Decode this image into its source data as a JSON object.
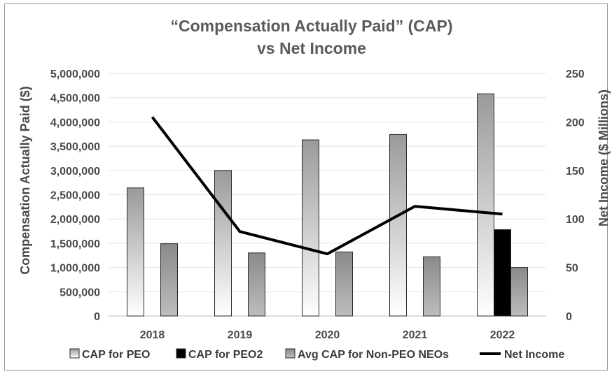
{
  "chart_data": {
    "type": "bar",
    "title": [
      "“Compensation Actually Paid” (CAP)",
      "vs Net Income"
    ],
    "categories": [
      "2018",
      "2019",
      "2020",
      "2021",
      "2022"
    ],
    "ylabel": "Compensation Actually Paid ($)",
    "y2label": "Net Income ($ Millions)",
    "ylim": [
      0,
      5000000
    ],
    "y2lim": [
      0,
      250
    ],
    "yticks": [
      "0",
      "500,000",
      "1,000,000",
      "1,500,000",
      "2,000,000",
      "2,500,000",
      "3,000,000",
      "3,500,000",
      "4,000,000",
      "4,500,000",
      "5,000,000"
    ],
    "y2ticks": [
      "0",
      "50",
      "100",
      "150",
      "200",
      "250"
    ],
    "grid": true,
    "legend_position": "bottom",
    "series": [
      {
        "name": "CAP for PEO",
        "kind": "bar",
        "axis": "left",
        "style": "gradient-light",
        "values": [
          2640000,
          3000000,
          3630000,
          3740000,
          4580000
        ]
      },
      {
        "name": "CAP for PEO2",
        "kind": "bar",
        "axis": "left",
        "style": "black",
        "values": [
          null,
          null,
          null,
          null,
          1780000
        ]
      },
      {
        "name": "Avg CAP for Non-PEO NEOs",
        "kind": "bar",
        "axis": "left",
        "style": "gradient-dark",
        "values": [
          1490000,
          1300000,
          1320000,
          1220000,
          1000000
        ]
      },
      {
        "name": "Net Income",
        "kind": "line",
        "axis": "right",
        "color": "#000000",
        "values": [
          205,
          87,
          64,
          113,
          105
        ]
      }
    ]
  }
}
